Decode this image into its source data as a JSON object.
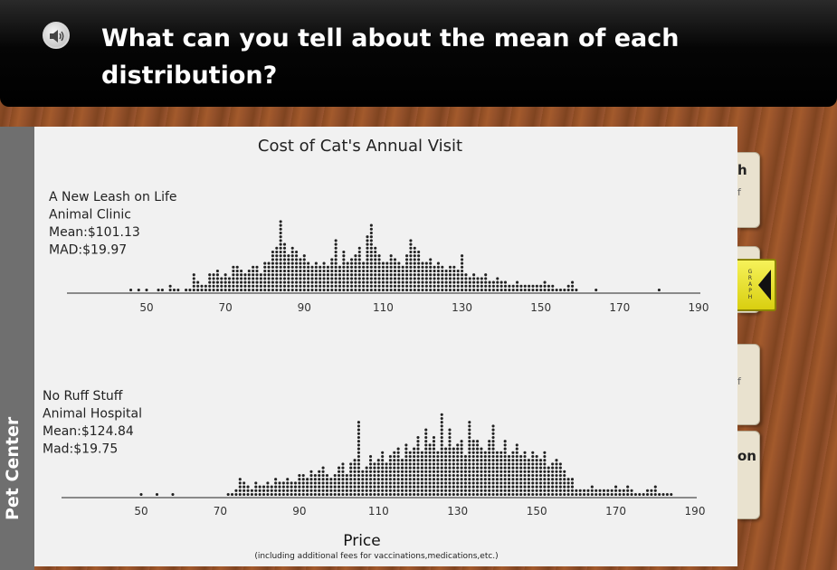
{
  "header": {
    "question": "What can you tell about the mean of each distribution?"
  },
  "sidebar": {
    "label": "Pet Center"
  },
  "side_tabs": [
    {
      "letter": "h",
      "sub": "f"
    },
    {
      "letter": "",
      "sub": "f"
    },
    {
      "letter": "on",
      "sub": ""
    }
  ],
  "graph_button": {
    "label": "GRAPH"
  },
  "chart_data": {
    "type": "dot plot",
    "title": "Cost of Cat's Annual Visit",
    "xlabel": "Price",
    "xlabel_note": "(including additional fees for vaccinations,medications,etc.)",
    "xlim": [
      40,
      190
    ],
    "ticks": [
      50,
      70,
      90,
      110,
      130,
      150,
      170,
      190
    ],
    "series": [
      {
        "label_lines": [
          "A New Leash on Life",
          "Animal Clinic",
          "Mean:$101.13",
          "MAD:$19.97"
        ],
        "name": "A New Leash on Life Animal Clinic",
        "mean": 101.13,
        "mad": 19.97,
        "x": [
          46,
          48,
          50,
          53,
          54,
          56,
          57,
          58,
          60,
          61,
          62,
          63,
          64,
          65,
          66,
          67,
          68,
          69,
          70,
          71,
          72,
          73,
          74,
          75,
          76,
          77,
          78,
          79,
          80,
          81,
          82,
          83,
          84,
          85,
          86,
          87,
          88,
          89,
          90,
          91,
          92,
          93,
          94,
          95,
          96,
          97,
          98,
          99,
          100,
          101,
          102,
          103,
          104,
          105,
          106,
          107,
          108,
          109,
          110,
          111,
          112,
          113,
          114,
          115,
          116,
          117,
          118,
          119,
          120,
          121,
          122,
          123,
          124,
          125,
          126,
          127,
          128,
          129,
          130,
          131,
          132,
          133,
          134,
          135,
          136,
          137,
          138,
          139,
          140,
          141,
          142,
          143,
          144,
          145,
          146,
          147,
          148,
          149,
          150,
          151,
          152,
          153,
          154,
          155,
          156,
          157,
          158,
          159,
          164,
          180
        ],
        "counts": [
          1,
          1,
          1,
          1,
          1,
          2,
          1,
          1,
          1,
          1,
          5,
          3,
          2,
          2,
          5,
          5,
          6,
          4,
          5,
          4,
          7,
          7,
          6,
          5,
          6,
          7,
          7,
          5,
          8,
          8,
          11,
          12,
          19,
          13,
          10,
          12,
          11,
          9,
          10,
          8,
          7,
          8,
          7,
          8,
          7,
          9,
          14,
          7,
          11,
          8,
          9,
          10,
          12,
          8,
          15,
          18,
          12,
          10,
          8,
          8,
          10,
          9,
          8,
          7,
          10,
          14,
          12,
          11,
          8,
          8,
          9,
          7,
          8,
          7,
          6,
          7,
          7,
          6,
          10,
          5,
          4,
          5,
          4,
          4,
          5,
          3,
          3,
          4,
          3,
          3,
          2,
          2,
          3,
          2,
          2,
          2,
          2,
          2,
          2,
          3,
          2,
          2,
          1,
          1,
          1,
          2,
          3,
          1,
          1,
          1
        ]
      },
      {
        "label_lines": [
          "No Ruff Stuff",
          "Animal Hospital",
          "Mean:$124.84",
          "Mad:$19.75"
        ],
        "name": "No Ruff Stuff Animal Hospital",
        "mean": 124.84,
        "mad": 19.75,
        "x": [
          50,
          54,
          58,
          72,
          73,
          74,
          75,
          76,
          77,
          78,
          79,
          80,
          81,
          82,
          83,
          84,
          85,
          86,
          87,
          88,
          89,
          90,
          91,
          92,
          93,
          94,
          95,
          96,
          97,
          98,
          99,
          100,
          101,
          102,
          103,
          104,
          105,
          106,
          107,
          108,
          109,
          110,
          111,
          112,
          113,
          114,
          115,
          116,
          117,
          118,
          119,
          120,
          121,
          122,
          123,
          124,
          125,
          126,
          127,
          128,
          129,
          130,
          131,
          132,
          133,
          134,
          135,
          136,
          137,
          138,
          139,
          140,
          141,
          142,
          143,
          144,
          145,
          146,
          147,
          148,
          149,
          150,
          151,
          152,
          153,
          154,
          155,
          156,
          157,
          158,
          159,
          160,
          161,
          162,
          163,
          164,
          165,
          166,
          167,
          168,
          169,
          170,
          171,
          172,
          173,
          174,
          175,
          176,
          177,
          178,
          179,
          180,
          181,
          182,
          183,
          184
        ],
        "counts": [
          1,
          1,
          1,
          1,
          1,
          2,
          5,
          4,
          3,
          2,
          4,
          3,
          3,
          4,
          3,
          5,
          4,
          4,
          5,
          4,
          4,
          6,
          6,
          5,
          7,
          6,
          7,
          8,
          6,
          5,
          6,
          8,
          9,
          6,
          9,
          10,
          20,
          7,
          8,
          11,
          9,
          10,
          12,
          9,
          11,
          12,
          13,
          10,
          14,
          12,
          13,
          16,
          12,
          18,
          14,
          16,
          12,
          22,
          13,
          18,
          13,
          14,
          15,
          11,
          20,
          15,
          15,
          13,
          12,
          15,
          19,
          12,
          12,
          15,
          11,
          12,
          14,
          11,
          12,
          10,
          12,
          11,
          10,
          12,
          8,
          9,
          10,
          9,
          7,
          5,
          5,
          2,
          2,
          2,
          2,
          3,
          2,
          2,
          2,
          2,
          2,
          3,
          2,
          2,
          3,
          2,
          1,
          1,
          1,
          2,
          2,
          3,
          1,
          1,
          1,
          1
        ]
      }
    ]
  }
}
